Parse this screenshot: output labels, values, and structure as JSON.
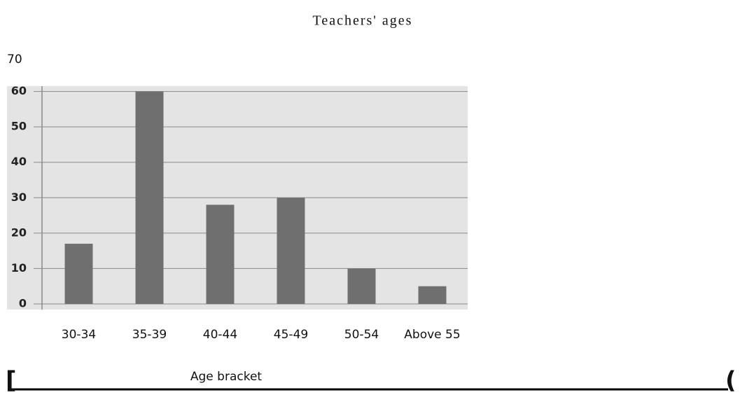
{
  "chart_data": {
    "type": "bar",
    "title": "Teachers' ages",
    "x_label": "Age bracket",
    "categories": [
      "30-34",
      "35-39",
      "40-44",
      "45-49",
      "50-54",
      "Above 55"
    ],
    "values": [
      17,
      60,
      28,
      30,
      10,
      5
    ],
    "color": "#6f6f6f",
    "ylim": [
      0,
      70
    ],
    "yticks": [
      0,
      10,
      20,
      30,
      40,
      50,
      60,
      70
    ],
    "grid": true
  },
  "fragments": [
    "[",
    "("
  ]
}
